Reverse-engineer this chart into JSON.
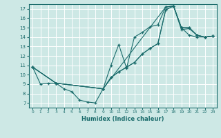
{
  "xlabel": "Humidex (Indice chaleur)",
  "xlim": [
    -0.5,
    23.5
  ],
  "ylim": [
    6.5,
    17.5
  ],
  "yticks": [
    7,
    8,
    9,
    10,
    11,
    12,
    13,
    14,
    15,
    16,
    17
  ],
  "xticks": [
    0,
    1,
    2,
    3,
    4,
    5,
    6,
    7,
    8,
    9,
    10,
    11,
    12,
    13,
    14,
    15,
    16,
    17,
    18,
    19,
    20,
    21,
    22,
    23
  ],
  "background_color": "#cde8e5",
  "grid_color": "#ffffff",
  "line_color": "#1a6b6b",
  "lines": [
    {
      "x": [
        0,
        1,
        2,
        3,
        4,
        5,
        6,
        7,
        8,
        9,
        10,
        11,
        12,
        13,
        14,
        15,
        16,
        17,
        18,
        19,
        20,
        21,
        22,
        23
      ],
      "y": [
        10.8,
        9.0,
        9.1,
        9.1,
        8.5,
        8.2,
        7.3,
        7.1,
        7.0,
        8.5,
        11.0,
        13.2,
        10.7,
        14.0,
        14.5,
        15.1,
        15.3,
        17.2,
        17.3,
        15.0,
        14.2,
        14.0,
        14.0,
        14.1
      ]
    },
    {
      "x": [
        0,
        3,
        9,
        10,
        11,
        12,
        13,
        14,
        15,
        16,
        17,
        18,
        19,
        20,
        21,
        22,
        23
      ],
      "y": [
        10.8,
        9.1,
        8.5,
        9.7,
        10.3,
        10.8,
        11.3,
        12.2,
        12.8,
        13.3,
        16.9,
        17.3,
        14.8,
        14.9,
        14.2,
        14.0,
        14.1
      ]
    },
    {
      "x": [
        0,
        3,
        9,
        10,
        11,
        12,
        13,
        14,
        15,
        16,
        17,
        18,
        19,
        20,
        21,
        22,
        23
      ],
      "y": [
        10.8,
        9.1,
        8.5,
        9.7,
        10.3,
        10.8,
        11.3,
        12.2,
        12.8,
        13.3,
        16.9,
        17.3,
        15.0,
        15.0,
        14.2,
        14.0,
        14.1
      ]
    },
    {
      "x": [
        0,
        3,
        9,
        17,
        18,
        19,
        20,
        21,
        22,
        23
      ],
      "y": [
        10.8,
        9.1,
        8.5,
        17.2,
        17.3,
        15.0,
        15.0,
        14.2,
        14.0,
        14.1
      ]
    }
  ]
}
